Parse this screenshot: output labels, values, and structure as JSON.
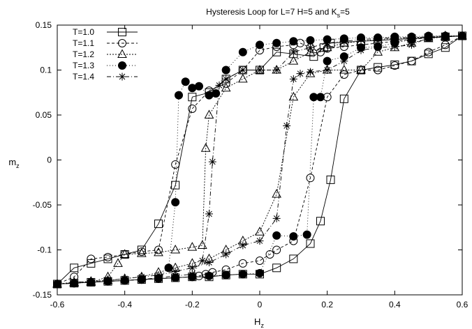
{
  "chart_data": {
    "type": "line",
    "title": "Hysteresis Loop for L=7 H=5 and K",
    "title_sub": "s",
    "title_tail": "=5",
    "xlabel": "H",
    "xlabel_sub": "z",
    "ylabel": "m",
    "ylabel_sub": "z",
    "xlim": [
      -0.6,
      0.6
    ],
    "ylim": [
      -0.15,
      0.15
    ],
    "xticks": [
      -0.6,
      -0.4,
      -0.2,
      0,
      0.2,
      0.4,
      0.6
    ],
    "xtick_labels": [
      "-0.6",
      "-0.4",
      "-0.2",
      "0",
      "0.2",
      "0.4",
      "0.6"
    ],
    "yticks": [
      -0.15,
      -0.1,
      -0.05,
      0,
      0.05,
      0.1,
      0.15
    ],
    "ytick_labels": [
      "-0.15",
      "-0.1",
      "-0.05",
      "0",
      "0.05",
      "0.1",
      "0.15"
    ],
    "grid": false,
    "legend_position": "top-left",
    "series": [
      {
        "name": "T=1.0",
        "marker": "square",
        "dash": "solid",
        "x": [
          0.6,
          0.55,
          0.5,
          0.45,
          0.4,
          0.35,
          0.3,
          0.25,
          0.21,
          0.19,
          0.16,
          0.1,
          0.05,
          0.0,
          -0.05,
          -0.1,
          -0.15,
          -0.2,
          -0.25,
          -0.3,
          -0.35,
          -0.4,
          -0.45,
          -0.5,
          -0.55,
          -0.6,
          -0.55,
          -0.5,
          -0.45,
          -0.4,
          -0.35,
          -0.3,
          -0.25,
          -0.2,
          -0.15,
          -0.1,
          -0.05,
          0.0,
          0.05,
          0.1,
          0.15,
          0.18,
          0.21,
          0.25,
          0.3,
          0.35,
          0.4,
          0.45,
          0.5,
          0.55,
          0.6
        ],
        "y": [
          0.138,
          0.137,
          0.136,
          0.135,
          0.134,
          0.133,
          0.132,
          0.131,
          0.13,
          0.125,
          0.115,
          0.118,
          0.12,
          0.1,
          0.1,
          0.09,
          0.075,
          0.07,
          -0.028,
          -0.071,
          -0.1,
          -0.105,
          -0.11,
          -0.115,
          -0.12,
          -0.138,
          -0.137,
          -0.136,
          -0.135,
          -0.134,
          -0.133,
          -0.132,
          -0.131,
          -0.13,
          -0.13,
          -0.128,
          -0.127,
          -0.127,
          -0.12,
          -0.11,
          -0.093,
          -0.068,
          -0.022,
          0.068,
          0.1,
          0.103,
          0.106,
          0.11,
          0.118,
          0.125,
          0.138
        ]
      },
      {
        "name": "T=1.1",
        "marker": "circle",
        "dash": "4,3",
        "x": [
          -0.6,
          -0.55,
          -0.5,
          -0.45,
          -0.4,
          -0.35,
          -0.3,
          -0.25,
          -0.2,
          -0.18,
          -0.16,
          -0.14,
          -0.1,
          -0.05,
          0.0,
          0.03,
          0.05,
          0.1,
          0.15,
          0.2,
          0.25,
          0.3,
          0.35,
          0.4,
          0.45,
          0.5,
          0.55,
          0.6,
          0.55,
          0.5,
          0.45,
          0.4,
          0.35,
          0.3,
          0.25,
          0.2,
          0.18,
          0.15,
          0.12,
          0.1,
          0.05,
          0.0,
          -0.05,
          -0.1,
          -0.15,
          -0.2,
          -0.25,
          -0.3,
          -0.35,
          -0.4,
          -0.45,
          -0.5,
          -0.55,
          -0.6
        ],
        "y": [
          -0.138,
          -0.137,
          -0.136,
          -0.135,
          -0.134,
          -0.133,
          -0.132,
          -0.131,
          -0.13,
          -0.129,
          -0.127,
          -0.125,
          -0.122,
          -0.115,
          -0.112,
          -0.105,
          -0.1,
          -0.09,
          -0.02,
          0.07,
          0.095,
          0.1,
          0.1,
          0.105,
          0.11,
          0.12,
          0.128,
          0.138,
          0.137,
          0.136,
          0.134,
          0.132,
          0.13,
          0.128,
          0.126,
          0.124,
          0.12,
          0.125,
          0.13,
          0.128,
          0.126,
          0.122,
          0.1,
          0.085,
          0.077,
          0.057,
          -0.005,
          -0.1,
          -0.102,
          -0.105,
          -0.108,
          -0.11,
          -0.13,
          -0.138
        ]
      },
      {
        "name": "T=1.2",
        "marker": "triangle",
        "dash": "2,2",
        "x": [
          -0.6,
          -0.55,
          -0.5,
          -0.45,
          -0.42,
          -0.4,
          -0.35,
          -0.3,
          -0.25,
          -0.2,
          -0.17,
          -0.16,
          -0.15,
          -0.1,
          -0.05,
          0.0,
          0.05,
          0.1,
          0.15,
          0.2,
          0.25,
          0.3,
          0.35,
          0.4,
          0.45,
          0.5,
          0.55,
          0.6,
          0.55,
          0.5,
          0.45,
          0.4,
          0.35,
          0.3,
          0.25,
          0.2,
          0.15,
          0.1,
          0.05,
          0.0,
          -0.05,
          -0.1,
          -0.15,
          -0.2,
          -0.25,
          -0.3,
          -0.35,
          -0.4,
          -0.45,
          -0.5,
          -0.55,
          -0.6
        ],
        "y": [
          -0.138,
          -0.137,
          -0.136,
          -0.13,
          -0.115,
          -0.105,
          -0.104,
          -0.103,
          -0.1,
          -0.097,
          -0.095,
          0.013,
          0.05,
          0.08,
          0.09,
          0.1,
          0.1,
          0.11,
          0.12,
          0.125,
          0.13,
          0.132,
          0.134,
          0.135,
          0.136,
          0.137,
          0.138,
          0.138,
          0.137,
          0.135,
          0.13,
          0.125,
          0.12,
          0.1,
          0.1,
          0.1,
          0.096,
          0.07,
          -0.038,
          -0.08,
          -0.09,
          -0.1,
          -0.11,
          -0.115,
          -0.12,
          -0.125,
          -0.13,
          -0.132,
          -0.134,
          -0.135,
          -0.136,
          -0.138
        ]
      },
      {
        "name": "T=1.3",
        "marker": "filled-circle",
        "dash": "1,3",
        "x": [
          -0.6,
          -0.55,
          -0.5,
          -0.45,
          -0.4,
          -0.35,
          -0.3,
          -0.27,
          -0.25,
          -0.24,
          -0.22,
          -0.2,
          -0.18,
          -0.15,
          -0.13,
          -0.1,
          -0.05,
          0.0,
          0.05,
          0.1,
          0.15,
          0.2,
          0.25,
          0.3,
          0.35,
          0.4,
          0.45,
          0.5,
          0.55,
          0.6,
          0.55,
          0.5,
          0.45,
          0.4,
          0.35,
          0.3,
          0.25,
          0.2,
          0.18,
          0.16,
          0.14,
          0.1,
          0.05,
          0.0,
          -0.05,
          -0.1,
          -0.15,
          -0.2,
          -0.25,
          -0.3,
          -0.35,
          -0.4,
          -0.45,
          -0.5,
          -0.55,
          -0.6
        ],
        "y": [
          -0.138,
          -0.137,
          -0.136,
          -0.135,
          -0.134,
          -0.133,
          -0.132,
          -0.12,
          -0.047,
          0.072,
          0.087,
          0.08,
          0.082,
          0.072,
          0.074,
          0.1,
          0.12,
          0.128,
          0.13,
          0.132,
          0.133,
          0.134,
          0.135,
          0.136,
          0.136,
          0.137,
          0.137,
          0.138,
          0.138,
          0.138,
          0.137,
          0.136,
          0.134,
          0.13,
          0.126,
          0.125,
          0.115,
          0.11,
          0.07,
          0.07,
          -0.083,
          -0.085,
          -0.084,
          -0.126,
          -0.127,
          -0.128,
          -0.129,
          -0.13,
          -0.131,
          -0.132,
          -0.133,
          -0.134,
          -0.135,
          -0.136,
          -0.137,
          -0.138
        ]
      },
      {
        "name": "T=1.4",
        "marker": "star",
        "dash": "6,3,1,3",
        "x": [
          -0.6,
          -0.55,
          -0.5,
          -0.45,
          -0.4,
          -0.35,
          -0.3,
          -0.25,
          -0.2,
          -0.17,
          -0.15,
          -0.14,
          -0.12,
          -0.1,
          -0.05,
          0.0,
          0.05,
          0.1,
          0.15,
          0.2,
          0.25,
          0.3,
          0.35,
          0.4,
          0.45,
          0.5,
          0.55,
          0.6,
          0.55,
          0.5,
          0.45,
          0.4,
          0.35,
          0.3,
          0.25,
          0.2,
          0.15,
          0.12,
          0.1,
          0.08,
          0.05,
          0.0,
          -0.05,
          -0.1,
          -0.15,
          -0.2,
          -0.25,
          -0.3,
          -0.35,
          -0.4,
          -0.45,
          -0.5,
          -0.55,
          -0.6
        ],
        "y": [
          -0.138,
          -0.137,
          -0.136,
          -0.135,
          -0.134,
          -0.133,
          -0.131,
          -0.129,
          -0.127,
          -0.112,
          -0.06,
          -0.002,
          0.083,
          0.09,
          0.1,
          0.1,
          0.1,
          0.12,
          0.125,
          0.13,
          0.132,
          0.134,
          0.135,
          0.136,
          0.136,
          0.137,
          0.137,
          0.138,
          0.137,
          0.136,
          0.128,
          0.126,
          0.125,
          0.122,
          0.11,
          0.1,
          0.098,
          0.096,
          0.09,
          0.038,
          -0.065,
          -0.09,
          -0.095,
          -0.105,
          -0.114,
          -0.12,
          -0.124,
          -0.128,
          -0.13,
          -0.132,
          -0.134,
          -0.135,
          -0.136,
          -0.138
        ]
      }
    ]
  }
}
